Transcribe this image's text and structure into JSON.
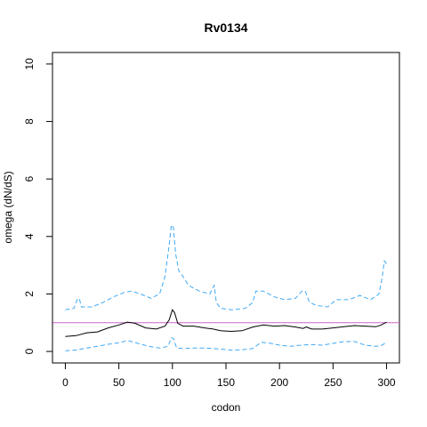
{
  "chart_data": {
    "type": "line",
    "title": "Rv0134",
    "xlabel": "codon",
    "ylabel": "omega (dN/dS)",
    "xlim": [
      -12,
      312
    ],
    "ylim": [
      -0.4,
      10.4
    ],
    "x_ticks": [
      0,
      50,
      100,
      150,
      200,
      250,
      300
    ],
    "y_ticks": [
      0,
      2,
      4,
      6,
      8,
      10
    ],
    "x_tick_labels": [
      "0",
      "50",
      "100",
      "150",
      "200",
      "250",
      "300"
    ],
    "y_tick_labels": [
      "0",
      "2",
      "4",
      "6",
      "8",
      "10"
    ],
    "grid": false,
    "reference_line": {
      "y": 1,
      "color": "#cc66cc"
    },
    "series": [
      {
        "style": "solid",
        "color": "#000000",
        "points": [
          [
            0,
            0.52
          ],
          [
            10,
            0.55
          ],
          [
            20,
            0.65
          ],
          [
            30,
            0.68
          ],
          [
            40,
            0.82
          ],
          [
            50,
            0.92
          ],
          [
            58,
            1.02
          ],
          [
            65,
            0.98
          ],
          [
            75,
            0.82
          ],
          [
            85,
            0.78
          ],
          [
            93,
            0.88
          ],
          [
            97,
            1.1
          ],
          [
            100,
            1.45
          ],
          [
            102,
            1.35
          ],
          [
            105,
            0.98
          ],
          [
            110,
            0.88
          ],
          [
            120,
            0.88
          ],
          [
            130,
            0.82
          ],
          [
            138,
            0.78
          ],
          [
            145,
            0.72
          ],
          [
            155,
            0.7
          ],
          [
            165,
            0.72
          ],
          [
            175,
            0.85
          ],
          [
            185,
            0.92
          ],
          [
            195,
            0.88
          ],
          [
            205,
            0.9
          ],
          [
            215,
            0.85
          ],
          [
            222,
            0.8
          ],
          [
            225,
            0.85
          ],
          [
            230,
            0.78
          ],
          [
            240,
            0.78
          ],
          [
            250,
            0.82
          ],
          [
            260,
            0.86
          ],
          [
            270,
            0.9
          ],
          [
            280,
            0.88
          ],
          [
            290,
            0.86
          ],
          [
            295,
            0.92
          ],
          [
            300,
            1.02
          ]
        ]
      },
      {
        "style": "dashed",
        "color": "#3fa9f5",
        "points": [
          [
            0,
            1.45
          ],
          [
            8,
            1.5
          ],
          [
            11,
            1.8
          ],
          [
            13,
            1.85
          ],
          [
            15,
            1.55
          ],
          [
            25,
            1.55
          ],
          [
            35,
            1.7
          ],
          [
            45,
            1.9
          ],
          [
            55,
            2.05
          ],
          [
            62,
            2.1
          ],
          [
            70,
            2.0
          ],
          [
            80,
            1.85
          ],
          [
            88,
            2.0
          ],
          [
            93,
            2.6
          ],
          [
            97,
            3.7
          ],
          [
            99,
            4.4
          ],
          [
            101,
            4.3
          ],
          [
            103,
            3.4
          ],
          [
            106,
            2.8
          ],
          [
            110,
            2.6
          ],
          [
            115,
            2.3
          ],
          [
            125,
            2.1
          ],
          [
            135,
            2.0
          ],
          [
            139,
            2.3
          ],
          [
            141,
            1.7
          ],
          [
            145,
            1.5
          ],
          [
            155,
            1.45
          ],
          [
            168,
            1.5
          ],
          [
            175,
            1.7
          ],
          [
            178,
            2.1
          ],
          [
            185,
            2.1
          ],
          [
            195,
            1.9
          ],
          [
            205,
            1.8
          ],
          [
            215,
            1.85
          ],
          [
            221,
            2.1
          ],
          [
            224,
            2.1
          ],
          [
            228,
            1.7
          ],
          [
            235,
            1.6
          ],
          [
            245,
            1.55
          ],
          [
            253,
            1.8
          ],
          [
            265,
            1.8
          ],
          [
            275,
            1.95
          ],
          [
            285,
            1.8
          ],
          [
            293,
            2.0
          ],
          [
            296,
            2.6
          ],
          [
            298,
            3.15
          ],
          [
            300,
            3.05
          ]
        ]
      },
      {
        "style": "dashed",
        "color": "#3fa9f5",
        "points": [
          [
            0,
            0.02
          ],
          [
            10,
            0.05
          ],
          [
            20,
            0.12
          ],
          [
            30,
            0.18
          ],
          [
            40,
            0.25
          ],
          [
            50,
            0.3
          ],
          [
            58,
            0.38
          ],
          [
            68,
            0.28
          ],
          [
            78,
            0.18
          ],
          [
            88,
            0.12
          ],
          [
            96,
            0.18
          ],
          [
            99,
            0.48
          ],
          [
            101,
            0.45
          ],
          [
            104,
            0.12
          ],
          [
            110,
            0.1
          ],
          [
            120,
            0.12
          ],
          [
            130,
            0.12
          ],
          [
            138,
            0.1
          ],
          [
            145,
            0.08
          ],
          [
            155,
            0.05
          ],
          [
            165,
            0.06
          ],
          [
            175,
            0.1
          ],
          [
            183,
            0.32
          ],
          [
            192,
            0.28
          ],
          [
            200,
            0.22
          ],
          [
            210,
            0.18
          ],
          [
            220,
            0.22
          ],
          [
            230,
            0.24
          ],
          [
            240,
            0.22
          ],
          [
            250,
            0.28
          ],
          [
            260,
            0.34
          ],
          [
            270,
            0.35
          ],
          [
            280,
            0.22
          ],
          [
            290,
            0.18
          ],
          [
            295,
            0.2
          ],
          [
            300,
            0.32
          ]
        ]
      }
    ]
  }
}
